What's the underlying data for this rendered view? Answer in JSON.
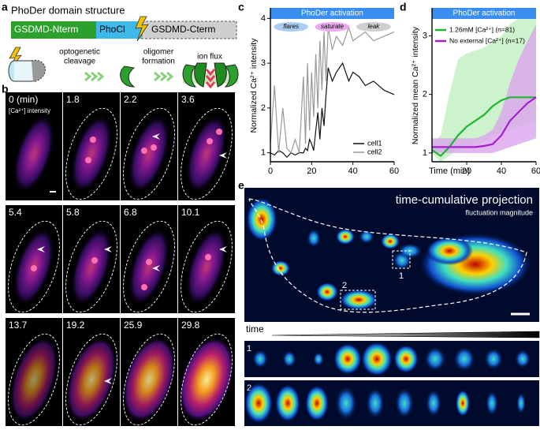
{
  "panel_labels": [
    "a",
    "b",
    "c",
    "d",
    "e"
  ],
  "panel_a": {
    "title": "PhoDer domain structure",
    "domains": [
      "GSDMD-Nterm",
      "PhoCl",
      "GSDMD-Cterm"
    ],
    "steps": [
      [
        "optogenetic",
        "cleavage"
      ],
      [
        "oligomer",
        "formation"
      ],
      [
        "ion flux"
      ]
    ]
  },
  "panel_b": {
    "subtitle": "[Ca²⁺] intensity",
    "times": [
      "0 (min)",
      "1.8",
      "2.2",
      "3.6",
      "5.4",
      "5.8",
      "6.8",
      "10.1",
      "13.7",
      "19.2",
      "25.9",
      "29.8"
    ]
  },
  "chart_data": [
    {
      "type": "line",
      "banner": "PhoDer activation",
      "tags": [
        {
          "text": "flares",
          "color": "#a9cdf2"
        },
        {
          "text": "saturate",
          "color": "#e9a9ec"
        },
        {
          "text": "leak",
          "color": "#cfcfcf"
        }
      ],
      "ylabel": "Normalized Ca²⁺ intensity",
      "x": [
        0,
        2,
        4,
        6,
        8,
        10,
        12,
        14,
        16,
        17,
        18,
        19,
        20,
        21,
        22,
        23,
        24,
        25,
        26,
        27,
        28,
        30,
        32,
        35,
        38,
        40,
        43,
        46,
        50,
        55,
        60
      ],
      "series": [
        {
          "name": "cell1",
          "color": "#111111",
          "values": [
            1.0,
            0.95,
            1.05,
            1.0,
            0.9,
            1.0,
            0.95,
            1.0,
            1.0,
            1.1,
            1.05,
            1.3,
            1.2,
            1.05,
            1.5,
            1.9,
            1.3,
            2.0,
            1.6,
            2.3,
            2.9,
            2.6,
            2.8,
            3.0,
            2.6,
            2.8,
            2.7,
            2.5,
            2.6,
            2.4,
            2.3
          ]
        },
        {
          "name": "cell2",
          "color": "#999999",
          "values": [
            1.2,
            2.5,
            1.0,
            2.0,
            1.1,
            1.0,
            1.3,
            1.0,
            2.7,
            1.2,
            3.0,
            1.5,
            2.8,
            1.8,
            3.2,
            2.0,
            3.5,
            2.4,
            3.7,
            2.6,
            3.8,
            3.3,
            3.6,
            3.4,
            3.8,
            3.5,
            3.6,
            3.7,
            3.5,
            3.6,
            3.7
          ]
        }
      ],
      "xlim": [
        0,
        60
      ],
      "ylim": [
        0.8,
        4.2
      ],
      "xticks": [
        0,
        20,
        40,
        60
      ],
      "yticks": [
        1,
        2,
        3,
        4
      ],
      "legend": "bottom-right"
    },
    {
      "type": "line",
      "banner": "PhoDer activation",
      "ylabel": "Normalized mean Ca²⁺ intensity",
      "xlabel": "Time (min)",
      "x": [
        0,
        5,
        10,
        15,
        20,
        25,
        30,
        35,
        40,
        45,
        50,
        55,
        60
      ],
      "series": [
        {
          "name": "1.26mM [Ca²⁺] (n=81)",
          "color": "#22b531",
          "band_color": "#bff0bf",
          "values": [
            1.05,
            0.95,
            1.1,
            1.3,
            1.45,
            1.55,
            1.65,
            1.8,
            1.9,
            1.95,
            1.95,
            1.95,
            1.95
          ],
          "lower": [
            1.0,
            0.85,
            0.95,
            1.05,
            1.1,
            1.15,
            1.2,
            1.3,
            1.35,
            1.4,
            1.45,
            1.5,
            1.55
          ],
          "upper": [
            1.15,
            1.3,
            2.0,
            2.6,
            2.7,
            2.75,
            2.8,
            2.9,
            3.0,
            3.2,
            3.3,
            3.4,
            3.45
          ]
        },
        {
          "name": "No external [Ca²⁺] (n=17)",
          "color": "#a51fd0",
          "band_color": "#dba4ee",
          "values": [
            1.1,
            1.1,
            1.1,
            1.1,
            1.1,
            1.1,
            1.12,
            1.15,
            1.3,
            1.55,
            1.7,
            1.85,
            1.95
          ],
          "lower": [
            1.0,
            1.0,
            1.0,
            1.0,
            1.0,
            1.0,
            1.0,
            1.0,
            1.05,
            1.1,
            1.15,
            1.2,
            1.25
          ],
          "upper": [
            1.25,
            1.25,
            1.25,
            1.25,
            1.25,
            1.25,
            1.3,
            1.4,
            1.7,
            2.2,
            2.6,
            2.9,
            3.2
          ]
        }
      ],
      "xlim": [
        0,
        60
      ],
      "ylim": [
        0.85,
        3.45
      ],
      "xticks": [
        20,
        40,
        60
      ],
      "yticks": [
        1,
        2,
        3
      ],
      "legend": "top-left"
    }
  ],
  "panel_e": {
    "title": "time-cumulative projection",
    "subtitle": "fluctuation magnitude",
    "roi_labels": [
      "1",
      "2"
    ],
    "time_label": "time",
    "rows": [
      "1",
      "2"
    ]
  }
}
